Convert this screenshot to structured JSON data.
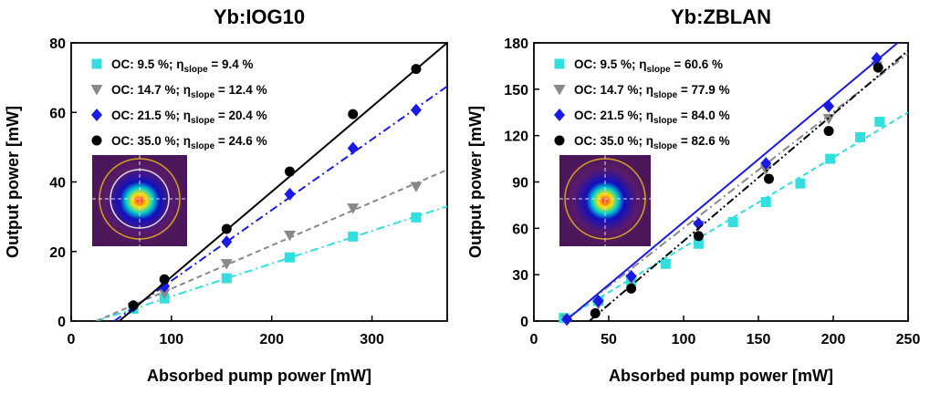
{
  "chart_data": [
    {
      "type": "scatter",
      "title": "Yb:IOG10",
      "xlabel": "Absorbed pump power [mW]",
      "ylabel": "Output power [mW]",
      "xlim": [
        0,
        375
      ],
      "ylim": [
        0,
        80
      ],
      "xticks": [
        0,
        100,
        200,
        300
      ],
      "yticks": [
        0,
        20,
        40,
        60,
        80
      ],
      "series": [
        {
          "name": "OC: 9.5 %; ηslope = 9.4 %",
          "color": "#33dede",
          "marker": "square",
          "line_style": "dashdot",
          "x": [
            62,
            93,
            155,
            218,
            281,
            344
          ],
          "values": [
            3.5,
            6.5,
            12.3,
            18.3,
            24.3,
            29.8
          ],
          "fit": {
            "x": [
              25,
              375
            ],
            "y": [
              0,
              33
            ]
          }
        },
        {
          "name": "OC: 14.7 %; ηslope = 12.4 %",
          "color": "#888888",
          "marker": "triangle-down",
          "line_style": "dashed",
          "x": [
            62,
            93,
            155,
            218,
            281,
            344
          ],
          "values": [
            4,
            8,
            16.5,
            24.7,
            32.5,
            38.7
          ],
          "fit": {
            "x": [
              25,
              375
            ],
            "y": [
              0,
              43.5
            ]
          }
        },
        {
          "name": "OC: 21.5 %; ηslope = 20.4 %",
          "color": "#1a1ae6",
          "marker": "diamond",
          "line_style": "dashdot",
          "x": [
            62,
            93,
            155,
            218,
            281,
            344
          ],
          "values": [
            4.3,
            10,
            22.8,
            36.5,
            49.7,
            60.7
          ],
          "fit": {
            "x": [
              43,
              375
            ],
            "y": [
              0,
              67.5
            ]
          }
        },
        {
          "name": "OC: 35.0 %; ηslope = 24.6 %",
          "color": "#000000",
          "marker": "circle",
          "line_style": "solid",
          "x": [
            62,
            93,
            155,
            218,
            281,
            344
          ],
          "values": [
            4.5,
            12,
            26.5,
            43,
            59.5,
            72.5
          ],
          "fit": {
            "x": [
              48,
              375
            ],
            "y": [
              0,
              80
            ]
          }
        }
      ]
    },
    {
      "type": "scatter",
      "title": "Yb:ZBLAN",
      "xlabel": "Absorbed pump power [mW]",
      "ylabel": "Output power [mW]",
      "xlim": [
        0,
        250
      ],
      "ylim": [
        0,
        180
      ],
      "xticks": [
        0,
        50,
        100,
        150,
        200,
        250
      ],
      "yticks": [
        0,
        30,
        60,
        90,
        120,
        150,
        180
      ],
      "series": [
        {
          "name": "OC: 9.5 %; ηslope = 60.6 %",
          "color": "#33dede",
          "marker": "square",
          "line_style": "dashed",
          "x": [
            20,
            43,
            65,
            88,
            110,
            133,
            155,
            178,
            198,
            218,
            231
          ],
          "values": [
            2,
            13,
            26,
            37,
            50,
            64,
            77,
            89,
            105,
            119,
            129
          ],
          "fit": {
            "x": [
              18,
              250
            ],
            "y": [
              0,
              135
            ]
          }
        },
        {
          "name": "OC: 14.7 %; ηslope = 77.9 %",
          "color": "#888888",
          "marker": "triangle-down",
          "line_style": "dashdot",
          "x": [
            22,
            43,
            65,
            110,
            155,
            197,
            229
          ],
          "values": [
            1,
            11,
            27,
            62,
            98,
            131,
            165
          ],
          "fit": {
            "x": [
              20,
              250
            ],
            "y": [
              0,
              173
            ]
          }
        },
        {
          "name": "OC: 21.5 %; ηslope = 84.0 %",
          "color": "#1a1ae6",
          "marker": "diamond",
          "line_style": "solid",
          "x": [
            22,
            43,
            65,
            110,
            155,
            197,
            229
          ],
          "values": [
            1,
            13,
            29,
            63,
            102,
            139,
            170
          ],
          "fit": {
            "x": [
              21,
              243
            ],
            "y": [
              0,
              180
            ]
          }
        },
        {
          "name": "OC: 35.0 %; ηslope = 82.6 %",
          "color": "#000000",
          "marker": "circle",
          "line_style": "dashdotdot",
          "x": [
            41,
            65,
            110,
            157,
            197,
            230
          ],
          "values": [
            5,
            21,
            55,
            92,
            123,
            164
          ],
          "fit": {
            "x": [
              37,
              250
            ],
            "y": [
              0,
              175
            ]
          }
        }
      ]
    }
  ]
}
